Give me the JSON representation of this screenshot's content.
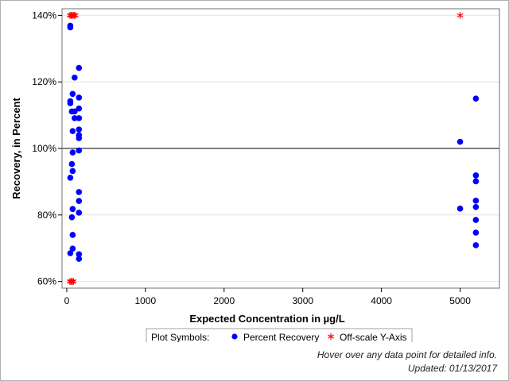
{
  "chart_data": {
    "type": "scatter",
    "xlabel": "Expected Concentration in µg/L",
    "ylabel": "Recovery, in Percent",
    "xlim": [
      -60,
      5500
    ],
    "ylim": [
      58,
      142
    ],
    "x_ticks": [
      0,
      1000,
      2000,
      3000,
      4000,
      5000
    ],
    "y_ticks": [
      60,
      80,
      100,
      120,
      140
    ],
    "y_tick_labels": [
      "60%",
      "80%",
      "100%",
      "120%",
      "140%"
    ],
    "reference_line_y": 100,
    "grid": "horizontal",
    "legend": {
      "placement": "bottom",
      "title": "Plot Symbols:",
      "entries": [
        {
          "label": "Percent Recovery",
          "symbol": "circle",
          "color": "#0000ff"
        },
        {
          "label": "Off-scale Y-Axis",
          "symbol": "asterisk",
          "color": "#ff0000"
        }
      ]
    },
    "series": [
      {
        "symbol": "circle",
        "color": "#0000ff",
        "points": [
          [
            45,
            136.9
          ],
          [
            45,
            136.4
          ],
          [
            45,
            114.2
          ],
          [
            45,
            113.6
          ],
          [
            45,
            91.2
          ],
          [
            45,
            68.5
          ],
          [
            65,
            111.1
          ],
          [
            65,
            95.3
          ],
          [
            65,
            79.3
          ],
          [
            75,
            116.4
          ],
          [
            75,
            105.2
          ],
          [
            75,
            98.8
          ],
          [
            75,
            93.2
          ],
          [
            75,
            81.8
          ],
          [
            75,
            74.0
          ],
          [
            75,
            69.9
          ],
          [
            100,
            121.3
          ],
          [
            100,
            111.1
          ],
          [
            100,
            109.1
          ],
          [
            155,
            124.2
          ],
          [
            155,
            115.3
          ],
          [
            155,
            112.0
          ],
          [
            155,
            109.1
          ],
          [
            155,
            105.7
          ],
          [
            155,
            104.0
          ],
          [
            155,
            103.1
          ],
          [
            155,
            99.4
          ],
          [
            155,
            86.9
          ],
          [
            155,
            84.2
          ],
          [
            155,
            80.7
          ],
          [
            155,
            68.2
          ],
          [
            155,
            66.8
          ],
          [
            5000,
            102.0
          ],
          [
            5000,
            81.9
          ],
          [
            5200,
            115.0
          ],
          [
            5200,
            91.9
          ],
          [
            5200,
            90.1
          ],
          [
            5200,
            84.3
          ],
          [
            5200,
            82.4
          ],
          [
            5200,
            78.5
          ],
          [
            5200,
            74.7
          ],
          [
            5200,
            70.9
          ]
        ]
      },
      {
        "symbol": "asterisk",
        "color": "#ff0000",
        "points": [
          [
            40,
            140
          ],
          [
            55,
            140
          ],
          [
            65,
            140
          ],
          [
            80,
            140
          ],
          [
            95,
            140
          ],
          [
            110,
            140
          ],
          [
            5000,
            140
          ],
          [
            40,
            60
          ],
          [
            55,
            60
          ],
          [
            70,
            60
          ],
          [
            85,
            60
          ]
        ]
      }
    ]
  },
  "notes": {
    "hover": "Hover over any data point for detailed info.",
    "updated": "Updated: 01/13/2017"
  }
}
